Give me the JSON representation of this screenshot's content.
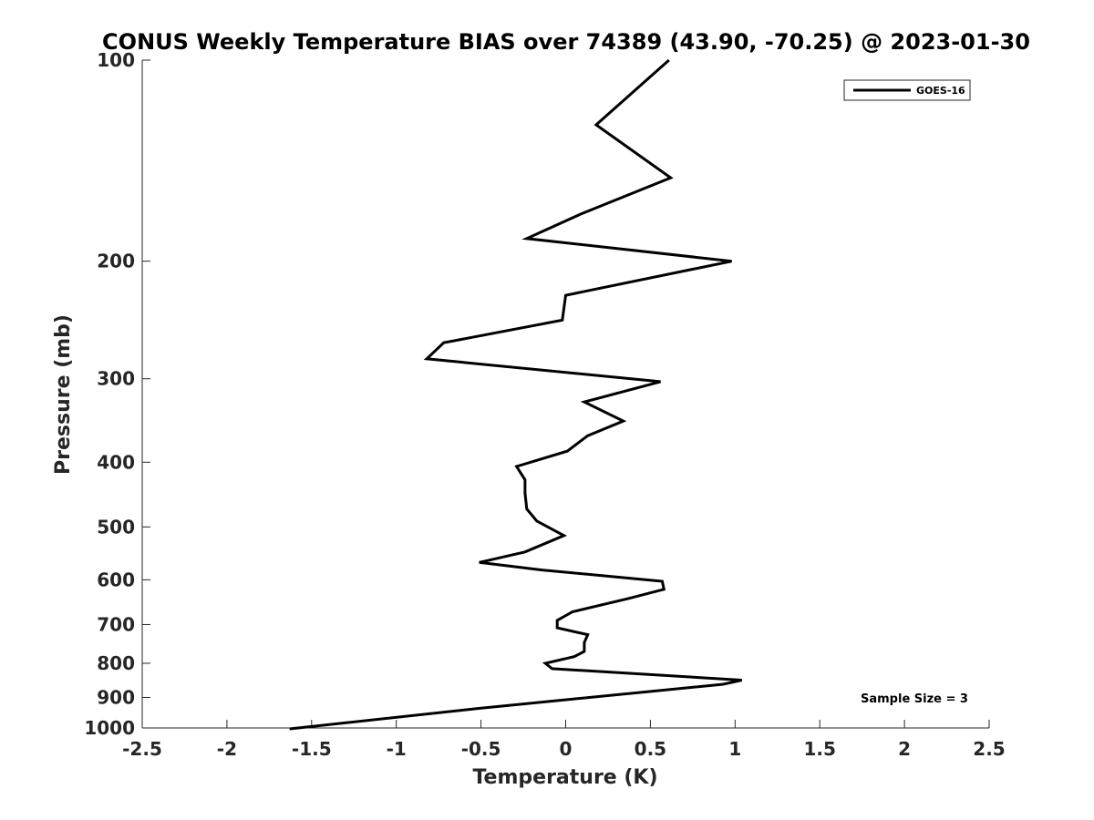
{
  "chart_data": {
    "type": "line",
    "title": "CONUS Weekly Temperature BIAS over 74389 (43.90, -70.25) @ 2023-01-30",
    "xlabel": "Temperature (K)",
    "ylabel": "Pressure (mb)",
    "xlim": [
      -2.5,
      2.5
    ],
    "ylim": [
      100,
      1000
    ],
    "y_scale": "log",
    "y_reversed": true,
    "grid": false,
    "legend_position": "top-right",
    "x_ticks": [
      -2.5,
      -2,
      -1.5,
      -1,
      -0.5,
      0,
      0.5,
      1,
      1.5,
      2,
      2.5
    ],
    "x_tick_labels": [
      "-2.5",
      "-2",
      "-1.5",
      "-1",
      "-0.5",
      "0",
      "0.5",
      "1",
      "1.5",
      "2",
      "2.5"
    ],
    "y_ticks": [
      100,
      200,
      300,
      400,
      500,
      600,
      700,
      800,
      900,
      1000
    ],
    "y_tick_labels": [
      "100",
      "200",
      "300",
      "400",
      "500",
      "600",
      "700",
      "800",
      "900",
      "1000"
    ],
    "series": [
      {
        "name": "GOES-16",
        "color": "#000000",
        "x": [
          0.61,
          0.18,
          0.62,
          0.09,
          -0.23,
          0.98,
          0.0,
          -0.02,
          -0.72,
          -0.82,
          0.56,
          0.11,
          0.34,
          0.13,
          0.01,
          -0.29,
          -0.24,
          -0.24,
          -0.23,
          -0.17,
          -0.01,
          -0.24,
          -0.51,
          -0.14,
          0.57,
          0.58,
          0.37,
          0.04,
          -0.05,
          -0.05,
          0.13,
          0.11,
          0.11,
          0.05,
          -0.12,
          -0.08,
          1.04,
          0.93,
          -0.52,
          -1.63
        ],
        "y": [
          100,
          125,
          150,
          170,
          185,
          200,
          225,
          245,
          265,
          280,
          303,
          325,
          347,
          365,
          385,
          406,
          425,
          445,
          470,
          490,
          515,
          545,
          565,
          580,
          603,
          620,
          640,
          670,
          690,
          708,
          725,
          745,
          768,
          782,
          800,
          815,
          848,
          860,
          935,
          1003
        ]
      }
    ],
    "annotations": [
      "Sample Size = 3"
    ]
  }
}
